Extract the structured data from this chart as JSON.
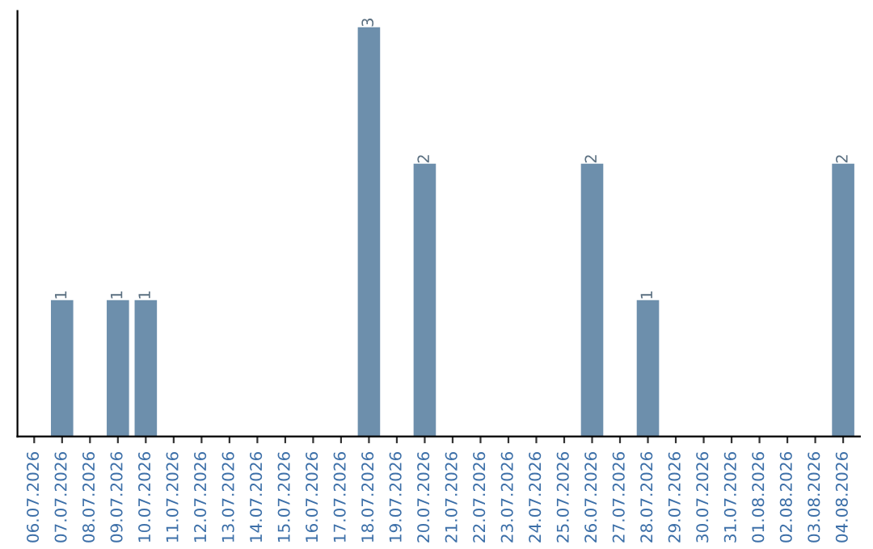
{
  "chart_data": {
    "type": "bar",
    "categories": [
      "06.07.2026",
      "07.07.2026",
      "08.07.2026",
      "09.07.2026",
      "10.07.2026",
      "11.07.2026",
      "12.07.2026",
      "13.07.2026",
      "14.07.2026",
      "15.07.2026",
      "16.07.2026",
      "17.07.2026",
      "18.07.2026",
      "19.07.2026",
      "20.07.2026",
      "21.07.2026",
      "22.07.2026",
      "23.07.2026",
      "24.07.2026",
      "25.07.2026",
      "26.07.2026",
      "27.07.2026",
      "28.07.2026",
      "29.07.2026",
      "30.07.2026",
      "31.07.2026",
      "01.08.2026",
      "02.08.2026",
      "03.08.2026",
      "04.08.2026"
    ],
    "values": [
      0,
      1,
      0,
      1,
      1,
      0,
      0,
      0,
      0,
      0,
      0,
      0,
      3,
      0,
      2,
      0,
      0,
      0,
      0,
      0,
      2,
      0,
      1,
      0,
      0,
      0,
      0,
      0,
      0,
      2
    ],
    "value_labels": [
      null,
      "1",
      null,
      "1",
      "1",
      null,
      null,
      null,
      null,
      null,
      null,
      null,
      "3",
      null,
      "2",
      null,
      null,
      null,
      null,
      null,
      "2",
      null,
      "1",
      null,
      null,
      null,
      null,
      null,
      null,
      "2"
    ],
    "color": "#6d8fac",
    "tick_labels": "x",
    "grid": false
  }
}
